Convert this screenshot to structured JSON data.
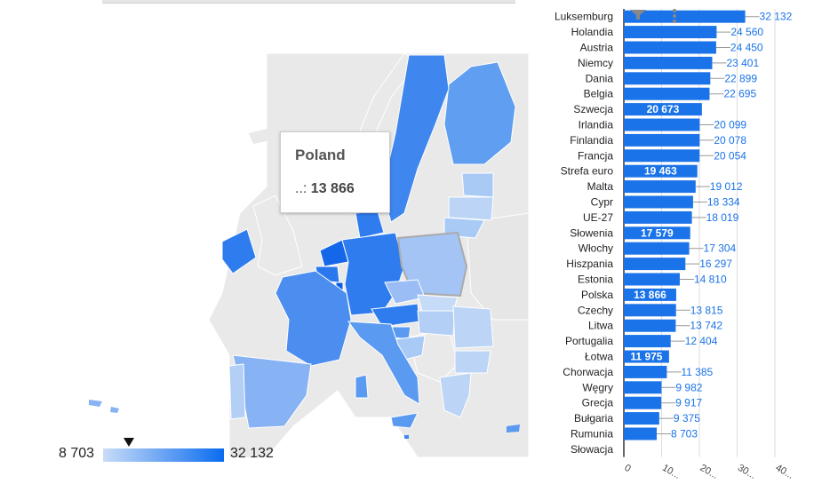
{
  "map": {
    "legend_min": "8 703",
    "legend_max": "32 132",
    "tooltip": {
      "title": "Poland",
      "label": "..:",
      "value": "13 866"
    }
  },
  "chart_data": {
    "type": "bar",
    "orientation": "horizontal",
    "categories": [
      "Luksemburg",
      "Holandia",
      "Austria",
      "Niemcy",
      "Dania",
      "Belgia",
      "Szwecja",
      "Irlandia",
      "Finlandia",
      "Francja",
      "Strefa euro",
      "Malta",
      "Cypr",
      "UE-27",
      "Słowenia",
      "Włochy",
      "Hiszpania",
      "Estonia",
      "Polska",
      "Czechy",
      "Litwa",
      "Portugalia",
      "Łotwa",
      "Chorwacja",
      "Węgry",
      "Grecja",
      "Bułgaria",
      "Rumunia",
      "Słowacja"
    ],
    "values": [
      32132,
      24560,
      24450,
      23401,
      22899,
      22695,
      20673,
      20099,
      20078,
      20054,
      19463,
      19012,
      18334,
      18019,
      17579,
      17304,
      16297,
      14810,
      13866,
      13815,
      13742,
      12404,
      11975,
      11385,
      9982,
      9917,
      9375,
      8703,
      null
    ],
    "value_labels": [
      "32 132",
      "24 560",
      "24 450",
      "23 401",
      "22 899",
      "22 695",
      "20 673",
      "20 099",
      "20 078",
      "20 054",
      "19 463",
      "19 012",
      "18 334",
      "18 019",
      "17 579",
      "17 304",
      "16 297",
      "14 810",
      "13 866",
      "13 815",
      "13 742",
      "12 404",
      "11 975",
      "11 385",
      "9 982",
      "9 917",
      "9 375",
      "8 703",
      ""
    ],
    "inside_labels": [
      "Szwecja",
      "Strefa euro",
      "Słowenia",
      "Polska",
      "Łotwa"
    ],
    "x_ticks": [
      0,
      10000,
      20000,
      30000,
      40000
    ],
    "x_tick_labels": [
      "0",
      "10...",
      "20...",
      "30...",
      "40..."
    ],
    "xlim": [
      0,
      40000
    ],
    "bar_color": "#1a73e8",
    "label_color": "#1a73e8"
  },
  "colors": {
    "scale_low": "#c8dcf7",
    "scale_high": "#0a6cf0",
    "no_data": "#e9e9e9"
  }
}
